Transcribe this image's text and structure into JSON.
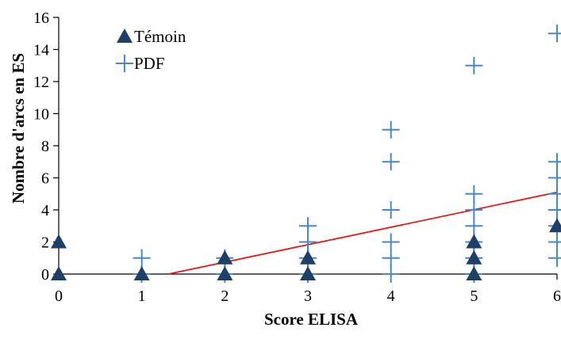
{
  "chart_data": {
    "type": "scatter",
    "xlabel": "Score ELISA",
    "ylabel": "Nombre d'arcs en ES",
    "xlim": [
      0,
      6
    ],
    "ylim": [
      0,
      16
    ],
    "x_ticks": [
      "0",
      "1",
      "2",
      "3",
      "4",
      "5",
      "6"
    ],
    "y_ticks": [
      "0",
      "2",
      "4",
      "6",
      "8",
      "10",
      "12",
      "14",
      "16"
    ],
    "grid": false,
    "legend_position": "top-left",
    "series": [
      {
        "name": "Témoin",
        "marker": "triangle",
        "color": "#1f3f66",
        "points": [
          [
            0,
            2
          ],
          [
            0,
            0
          ],
          [
            1,
            0
          ],
          [
            2,
            1
          ],
          [
            2,
            0
          ],
          [
            3,
            1
          ],
          [
            3,
            0
          ],
          [
            5,
            2
          ],
          [
            5,
            1
          ],
          [
            5,
            0
          ],
          [
            6,
            3
          ]
        ]
      },
      {
        "name": "PDF",
        "marker": "plus",
        "color": "#4a86c8",
        "points": [
          [
            1,
            1
          ],
          [
            1,
            0
          ],
          [
            2,
            1
          ],
          [
            2,
            0
          ],
          [
            3,
            3
          ],
          [
            3,
            2
          ],
          [
            3,
            1
          ],
          [
            3,
            0
          ],
          [
            4,
            9
          ],
          [
            4,
            7
          ],
          [
            4,
            4
          ],
          [
            4,
            2
          ],
          [
            4,
            1
          ],
          [
            4,
            0
          ],
          [
            5,
            13
          ],
          [
            5,
            5
          ],
          [
            5,
            4
          ],
          [
            5,
            3
          ],
          [
            5,
            2
          ],
          [
            5,
            1
          ],
          [
            5,
            0
          ],
          [
            6,
            15
          ],
          [
            6,
            7
          ],
          [
            6,
            6
          ],
          [
            6,
            5
          ],
          [
            6,
            4
          ],
          [
            6,
            3
          ],
          [
            6,
            2
          ],
          [
            6,
            1
          ]
        ]
      }
    ],
    "trendline": {
      "color": "#e31a1c",
      "points": [
        [
          1.32,
          0
        ],
        [
          6,
          5.1
        ]
      ]
    }
  }
}
